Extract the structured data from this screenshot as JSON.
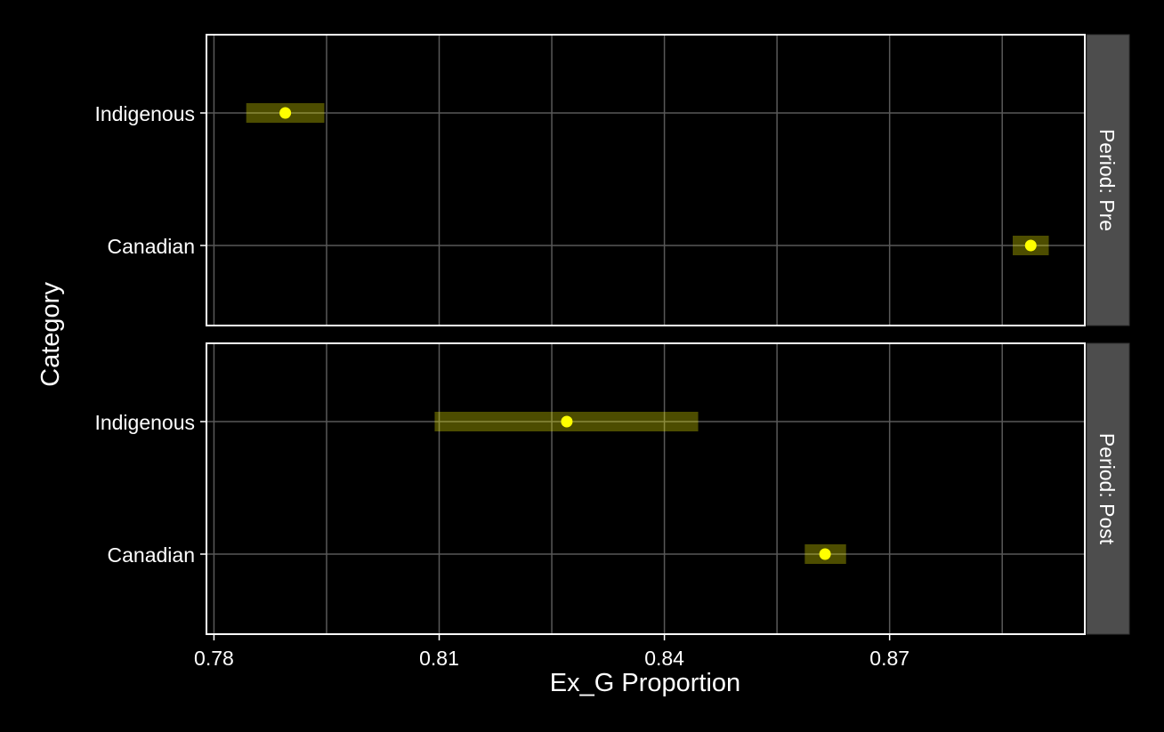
{
  "chart_data": {
    "type": "scatter",
    "subtype": "point-range (faceted)",
    "xlabel": "Ex_G Proportion",
    "ylabel": "Category",
    "x_ticks": [
      0.78,
      0.81,
      0.84,
      0.87
    ],
    "x_tick_labels": [
      "0.78",
      "0.81",
      "0.84",
      "0.87"
    ],
    "xlim": [
      0.779,
      0.896
    ],
    "categories": [
      "Indigenous",
      "Canadian"
    ],
    "grid": true,
    "facets": [
      {
        "label": "Period: Pre",
        "points": [
          {
            "category": "Indigenous",
            "value": 0.7895,
            "lower": 0.7843,
            "upper": 0.7947
          },
          {
            "category": "Canadian",
            "value": 0.8888,
            "lower": 0.8864,
            "upper": 0.8912
          }
        ]
      },
      {
        "label": "Period: Post",
        "points": [
          {
            "category": "Indigenous",
            "value": 0.827,
            "lower": 0.8094,
            "upper": 0.8445
          },
          {
            "category": "Canadian",
            "value": 0.8614,
            "lower": 0.8587,
            "upper": 0.8642
          }
        ]
      }
    ],
    "colors": {
      "background": "#000000",
      "point": "#FFFF00",
      "interval": "#FFFF00",
      "grid": "#595959",
      "strip": "#4D4D4D",
      "text": "#FFFFFF"
    }
  }
}
